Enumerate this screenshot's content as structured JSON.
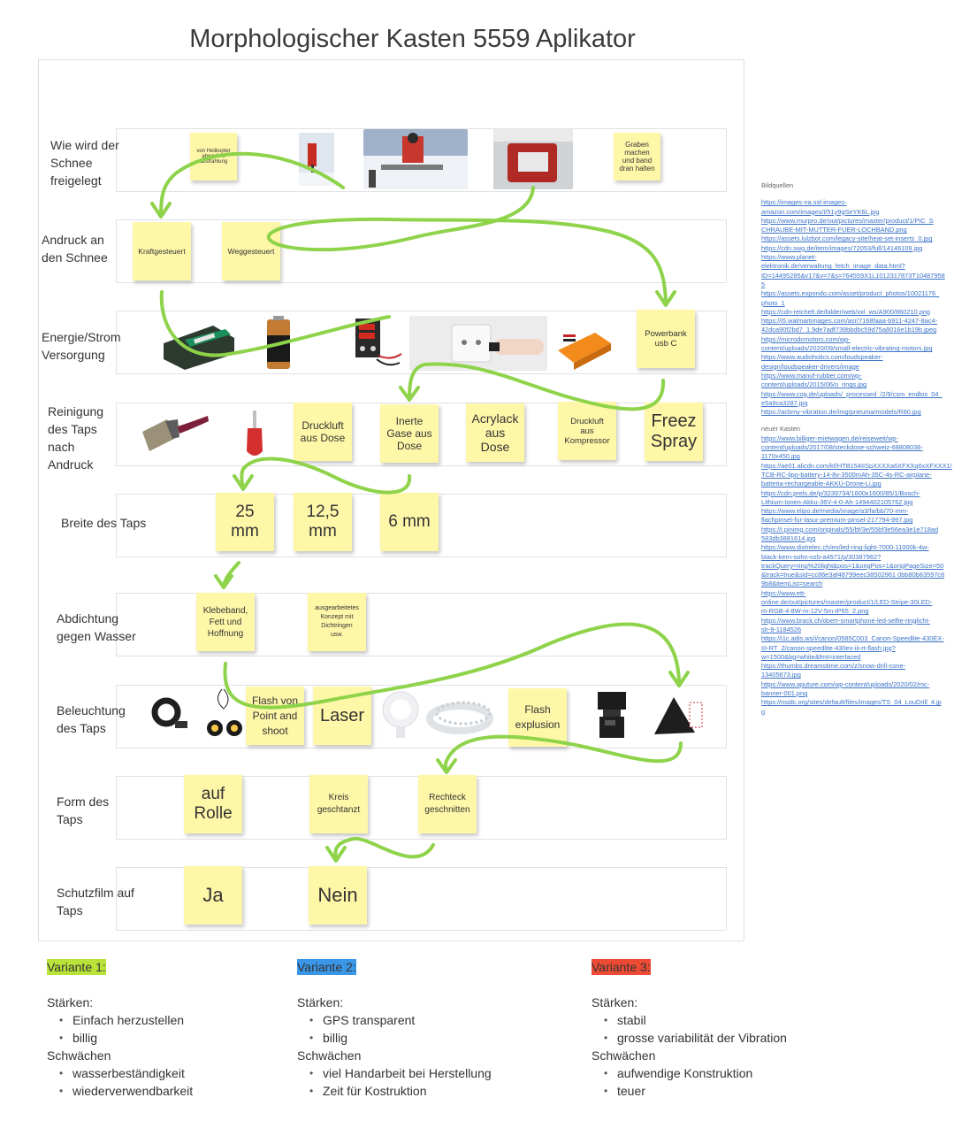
{
  "title": "Morphologischer Kasten 5559 Aplikator",
  "rows": [
    {
      "label": "Wie wird der\nSchnee\nfreigelegt"
    },
    {
      "label": "Andruck an\nden Schnee"
    },
    {
      "label": "Energie/Strom\nVersorgung"
    },
    {
      "label": "Reinigung\ndes Taps\nnach\nAndruck"
    },
    {
      "label": "Breite des Taps"
    },
    {
      "label": "Abdichtung\n gegen Wasser"
    },
    {
      "label": "Beleuchtung\ndes Taps"
    },
    {
      "label": "Form des\nTaps"
    },
    {
      "label": "Schutzfilm auf\nTaps"
    }
  ],
  "notes": {
    "helikopter": "von Helikopter\nabwerfen,\nabstrahlung",
    "graben": "Graben\nmachen\nund band\ndran halten",
    "kraft": "Kraftgesteuert",
    "weg": "Weggesteuert",
    "powerbank": "Powerbank\nusb C",
    "druckluft_dose": "Druckluft\naus Dose",
    "inerte": "Inerte\nGase aus\nDose",
    "acrylack": "Acrylack\naus\nDose",
    "druckluft_komp": "Druckluft\naus\nKompressor",
    "freez": "Freez\nSpray",
    "w25": "25\nmm",
    "w125": "12,5\nmm",
    "w6": "6 mm",
    "klebeband": "Klebeband,\nFett und\nHoffnung",
    "konzept": "ausgearbeitetes\nKonzept mit\nDichtringen\nusw.",
    "flash_point": "Flash von\nPoint and\nshoot",
    "laser": "Laser",
    "flash_expl": "Flash\nexplusion",
    "rolle": "auf\nRolle",
    "kreis": "Kreis\ngeschtanzt",
    "rechteck": "Rechteck\ngeschnitten",
    "ja": "Ja",
    "nein": "Nein"
  },
  "sources": {
    "heading1": "Bildquellen",
    "links1": [
      "https://images-na.ssl-images-\namazon.com/images/I/51y9gSeYK6L.jpg",
      "https://www.murpro.de/out/pictures/master/product/1/PIC_S\nCHRAUBE-MIT-MUTTER-FUER-LOCHBAND.png",
      "https://assets.lulzbot.com/legacy-site/heat-set-inserts_0.jpg",
      "https://cdn.swg.de/item/images/72053/full/14146109.jpg",
      "https://www.planet-\nelektronik.de/verwaltung_fetch_image_data.html?\nID=14495285&v17&v=7&s=764559X1L1012317873T10487958\n5",
      "https://assets.expondo.com/asset/product_photos/10021176_\nphoto_1",
      "https://cdn-reichelt.de/bilder/web/xxl_ws/A900/860210.png",
      "https://i5.walmartimages.com/asr/7168faaa-b911-4247-8ac4-\n42dca90f2bd7_1.9de7adf739bbdbc59d75a8016e1b19b.jpeg",
      "https://microdcmotors.com/wp-\ncontent/uploads/2020/09/small-electric-vibrating-motors.jpg",
      "https://www.audioholics.com/loudspeaker-\ndesign/loudspeaker-drivers/image",
      "https://www.manuf-rubber.com/wp-\ncontent/uploads/2015/06/o_rings.jpg",
      "https://www.cog.de/uploads/_processed_/2/9/csm_endlos_04_\ne5a9ca3287.jpg",
      "https://acbmy-vibration.de/img/pneuma/models/R80.jpg"
    ],
    "heading2": "neuer Kasten",
    "links2": [
      "https://www.billiger-mietwagen.de/reiseweit/wp-\ncontent/uploads/2017/08/steckdose-schweiz-68808036-\n1170x450.jpg",
      "https://ae01.alicdn.com/kf/HTB154IISpXXXXa6XFXXq6xXFXXX1/\nTCB-RC-lipo-battery-14-8v-3500mAh-35C-4s-RC-airplane-\nbatteria-rechargeable-AKKU-Drone-Li.jpg",
      "https://cdn.prels.de/p/3239734/1600x1600/85/1/Bosch-\nLithium-Ionen-Akku-36V-4-0-Ah-1494402105762.jpg",
      "https://www.elipo.de/media/image/a3/fa/bb/70-mm-\nflachpinsel-fur-lasur-premium-pinsel-217794-997.jpg",
      "https://i.pinimg.com/originals/55/bf/3e/55bf3e56ea3e1e718ad\n583db3881614.jpg",
      "https://www.distrelec.ch/en/led-ring-light-7000-11000k-4w-\nblack-kern-sohn-ozb-a4571/p/30387962?\ntrackQuery=ring%20light&pos=1&origPos=1&origPageSize=50\n&track=true&sid=cc86e3af48799eec38502961 0bb80b83597c8\n9b8&itemList=search",
      "https://www.ett-\nonline.de/out/pictures/master/product/1/LED-Stripe-30LED-\nm-RGB-4-8W-m-12V-5m-IP65_2.png",
      "https://www.brack.ch/doerr-smartphone-led-selfie-ringlicht-\nslr-9-1184526",
      "https://i1c.adis.ws/i/canon/0585C003_Canon-Speedlite-430EX-\nIII-RT_2/canon-speedlite-430ex-iii-rt-flash.jpg?\nw=1500&bg=white&fmt=interlaced",
      "https://thumbs.dreamstime.com/z/snow-drill-cone-\n13405673.jpg",
      "https://www.aputure.com/wp-content/uploads/2020/02/mc-\nbanner-001.png",
      "https://nsidc.org/sites/default/files/images/TS_04_LouDrill_4.jp\ng"
    ]
  },
  "variants": [
    {
      "tag": "Variante 1:",
      "color": "#b9e23a",
      "strengths_label": "Stärken:",
      "strengths": [
        "Einfach herzustellen",
        "billig"
      ],
      "weaknesses_label": "Schwächen",
      "weaknesses": [
        "wasserbeständigkeit",
        "wiederverwendbarkeit"
      ]
    },
    {
      "tag": "Variante 2:",
      "color": "#3a97e8",
      "strengths_label": "Stärken:",
      "strengths": [
        "GPS transparent",
        "billig"
      ],
      "weaknesses_label": "Schwächen",
      "weaknesses": [
        "viel Handarbeit bei Herstellung",
        "Zeit für Kostruktion"
      ]
    },
    {
      "tag": "Variante 3:",
      "color": "#ee4b35",
      "strengths_label": "Stärken:",
      "strengths": [
        "stabil",
        "grosse variabilität der Vibration"
      ],
      "weaknesses_label": "Schwächen",
      "weaknesses": [
        "aufwendige Konstruktion",
        "teuer"
      ]
    }
  ],
  "colors": {
    "arrow": "#8ed34a",
    "note": "#fff7a8"
  }
}
